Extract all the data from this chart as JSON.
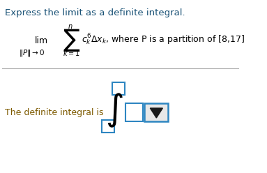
{
  "title_text": "Express the limit as a definite integral.",
  "title_color": "#1a5276",
  "title_fontsize": 9.5,
  "body_color": "#000000",
  "bottom_text": "The definite integral is",
  "bottom_color": "#7d5a00",
  "bg_color": "#ffffff",
  "line_color": "#aaaaaa",
  "box_color": "#2e86c1",
  "integral_color": "#000000",
  "dropdown_bg": "#e8e8e8",
  "arrow_color": "#1a1a1a"
}
